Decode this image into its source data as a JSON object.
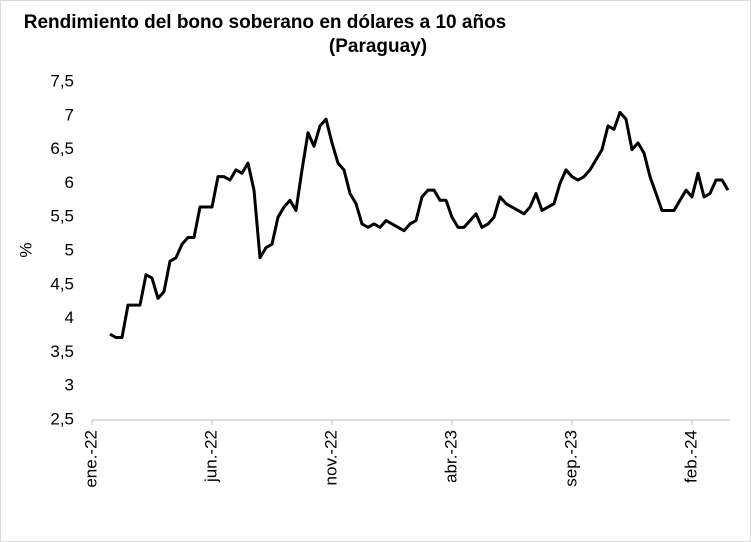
{
  "chart_data": {
    "type": "line",
    "title": [
      "Rendimiento del bono soberano en dólares a 10 años",
      "(Paraguay)"
    ],
    "y_label": "%",
    "categories": [
      "ene.-22",
      null,
      null,
      null,
      null,
      null,
      null,
      null,
      null,
      null,
      null,
      null,
      null,
      null,
      null,
      null,
      null,
      null,
      null,
      null,
      "jun.-22",
      null,
      null,
      null,
      null,
      null,
      null,
      null,
      null,
      null,
      null,
      null,
      null,
      null,
      null,
      null,
      null,
      null,
      null,
      null,
      "nov.-22",
      null,
      null,
      null,
      null,
      null,
      null,
      null,
      null,
      null,
      null,
      null,
      null,
      null,
      null,
      null,
      null,
      null,
      null,
      null,
      "abr.-23",
      null,
      null,
      null,
      null,
      null,
      null,
      null,
      null,
      null,
      null,
      null,
      null,
      null,
      null,
      null,
      null,
      null,
      null,
      null,
      "sep.-23",
      null,
      null,
      null,
      null,
      null,
      null,
      null,
      null,
      null,
      null,
      null,
      null,
      null,
      null,
      null,
      null,
      null,
      null,
      null,
      "feb.-24",
      null,
      null,
      null,
      null,
      null,
      null
    ],
    "series": [
      {
        "name": "Rendimiento",
        "color": "#000000",
        "values": [
          null,
          null,
          null,
          3.77,
          3.72,
          3.72,
          4.2,
          4.2,
          4.2,
          4.65,
          4.6,
          4.3,
          4.4,
          4.85,
          4.9,
          5.1,
          5.2,
          5.2,
          5.65,
          5.65,
          5.65,
          6.1,
          6.1,
          6.05,
          6.2,
          6.15,
          6.3,
          5.9,
          4.9,
          5.05,
          5.1,
          5.5,
          5.65,
          5.75,
          5.6,
          6.2,
          6.75,
          6.55,
          6.85,
          6.95,
          6.6,
          6.3,
          6.2,
          5.85,
          5.7,
          5.4,
          5.35,
          5.4,
          5.35,
          5.45,
          5.4,
          5.35,
          5.3,
          5.4,
          5.45,
          5.8,
          5.9,
          5.9,
          5.75,
          5.75,
          5.5,
          5.35,
          5.35,
          5.45,
          5.55,
          5.35,
          5.4,
          5.5,
          5.8,
          5.7,
          5.65,
          5.6,
          5.55,
          5.65,
          5.85,
          5.6,
          5.65,
          5.7,
          6.0,
          6.2,
          6.1,
          6.05,
          6.1,
          6.2,
          6.35,
          6.5,
          6.85,
          6.8,
          7.05,
          6.95,
          6.5,
          6.6,
          6.45,
          6.1,
          5.85,
          5.6,
          5.6,
          5.6,
          5.75,
          5.9,
          5.8,
          6.15,
          5.8,
          5.85,
          6.05,
          6.05,
          5.9
        ]
      }
    ],
    "ylim": [
      2.5,
      7.5
    ],
    "yticks": [
      {
        "value": 2.5,
        "label": "2,5"
      },
      3,
      {
        "value": 3.5,
        "label": "3,5"
      },
      4,
      {
        "value": 4.5,
        "label": "4,5"
      },
      5,
      {
        "value": 5.5,
        "label": "5,5"
      },
      6,
      {
        "value": 6.5,
        "label": "6,5"
      },
      7,
      {
        "value": 7.5,
        "label": "7,5"
      }
    ],
    "grid": false
  }
}
